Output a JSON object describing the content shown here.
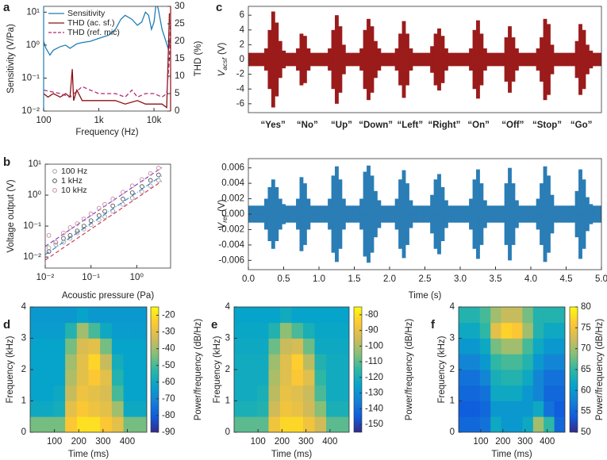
{
  "chart_data": [
    {
      "panel": "a",
      "type": "line",
      "xlabel": "Frequency (Hz)",
      "ylabel": "Sensitivity (V/Pa)",
      "y2label": "THD (%)",
      "xscale": "log",
      "yscale": "log",
      "xlim": [
        100,
        20000
      ],
      "ylim": [
        0.01,
        15
      ],
      "y2lim": [
        0,
        30
      ],
      "xticks": [
        100,
        {
          "value": 1000,
          "label": "1k"
        },
        {
          "value": 10000,
          "label": "10k"
        }
      ],
      "yticks": [
        {
          "value": 0.01,
          "label": "10⁻²"
        },
        {
          "value": 0.1,
          "label": "10⁻¹"
        },
        {
          "value": 1,
          "label": "10⁰"
        },
        {
          "value": 10,
          "label": "10¹"
        }
      ],
      "y2ticks": [
        0,
        5,
        10,
        15,
        20,
        25,
        30
      ],
      "legend": "upper left",
      "series": [
        {
          "name": "Sensitivity",
          "color": "#1f7db5",
          "x": [
            100,
            110,
            130,
            150,
            200,
            250,
            300,
            400,
            500,
            700,
            1000,
            1500,
            2000,
            2500,
            3000,
            4000,
            5000,
            6000,
            7000,
            8000,
            9000,
            10000,
            11000,
            12000,
            14000,
            16000,
            18000,
            20000
          ],
          "values": [
            1.3,
            0.8,
            0.5,
            0.7,
            0.9,
            1.0,
            0.8,
            1.1,
            1.2,
            1.3,
            1.6,
            2.0,
            3.0,
            6,
            8,
            6,
            4,
            5,
            10,
            8,
            3,
            5,
            20,
            12,
            3,
            1.5,
            0.8,
            1.5
          ]
        },
        {
          "name": "THD (ac. sf.)",
          "color": "#8b1010",
          "axis": "y2",
          "x": [
            100,
            120,
            150,
            200,
            250,
            300,
            330,
            350,
            400,
            500,
            700,
            1000,
            2000,
            3000,
            5000,
            7000,
            10000,
            14000,
            17000,
            18000,
            19000
          ],
          "values": [
            5,
            4,
            5,
            4,
            5,
            4,
            12,
            3,
            6,
            3,
            3,
            3,
            3,
            2,
            3,
            2,
            2,
            2,
            1,
            14,
            28
          ]
        },
        {
          "name": "THD (ref. mic)",
          "color": "#b4296e",
          "axis": "y2",
          "dash": true,
          "x": [
            100,
            200,
            300,
            500,
            700,
            1000,
            2000,
            3000,
            4000,
            5000,
            7000,
            10000,
            14000,
            17000,
            19000,
            20000
          ],
          "values": [
            6,
            5,
            4,
            7,
            6,
            5,
            5,
            4,
            6,
            4,
            5,
            5,
            4,
            5,
            15,
            27
          ]
        }
      ]
    },
    {
      "panel": "b",
      "type": "scatter",
      "xlabel": "Acoustic pressure (Pa)",
      "ylabel": "Voltage output (V)",
      "xscale": "log",
      "yscale": "log",
      "xlim": [
        0.01,
        5.5
      ],
      "ylim": [
        0.0044,
        10
      ],
      "xticks": [
        {
          "value": 0.01,
          "label": "10⁻²"
        },
        {
          "value": 0.1,
          "label": "10⁻¹"
        },
        {
          "value": 1,
          "label": "10⁰"
        }
      ],
      "yticks": [
        {
          "value": 0.01,
          "label": "10⁻²"
        },
        {
          "value": 0.1,
          "label": "10⁻¹"
        },
        {
          "value": 1,
          "label": "10⁰"
        },
        {
          "value": 10,
          "label": "10¹"
        }
      ],
      "legend": "upper left",
      "x": [
        0.012,
        0.017,
        0.025,
        0.035,
        0.05,
        0.07,
        0.1,
        0.15,
        0.2,
        0.3,
        0.5,
        0.8,
        1.3,
        2,
        3
      ],
      "line_x": [
        0.01,
        3.5
      ],
      "series": [
        {
          "name": "100 Hz",
          "color": "#a0a0a0",
          "values": [
            0.02,
            0.025,
            0.03,
            0.04,
            0.06,
            0.08,
            0.11,
            0.16,
            0.2,
            0.3,
            0.5,
            0.8,
            1.3,
            2,
            3
          ],
          "line_color": "#d04060",
          "line_values": [
            0.008,
            2.8
          ]
        },
        {
          "name": "1 kHz",
          "color": "#555555",
          "values": [
            0.015,
            0.03,
            0.04,
            0.05,
            0.07,
            0.1,
            0.15,
            0.22,
            0.3,
            0.45,
            0.75,
            1.2,
            1.9,
            3,
            4.5
          ],
          "line_color": "#3a8fd0",
          "line_values": [
            0.012,
            4.2
          ]
        },
        {
          "name": "10 kHz",
          "color": "#c88a9c",
          "values": [
            0.05,
            0.03,
            0.06,
            0.09,
            0.12,
            0.17,
            0.25,
            0.38,
            0.5,
            0.75,
            1.25,
            2,
            3.2,
            5,
            7.5
          ],
          "line_color": "#8a40c0",
          "line_values": [
            0.022,
            7.7
          ]
        }
      ]
    },
    {
      "panel": "c",
      "type": "area",
      "ylabel": {
        "symbol": "V",
        "sub": "acsf",
        "unit": "(V)"
      },
      "xlim": [
        0,
        5
      ],
      "ylim": [
        -7.2,
        7.2
      ],
      "yticks": [
        -6,
        -4,
        -2,
        0,
        2,
        4,
        6
      ],
      "words": [
        "“Yes”",
        "“No”",
        "“Up”",
        "“Down”",
        "“Left”",
        "“Right”",
        "“On”",
        "“Off”",
        "“Stop”",
        "“Go”"
      ],
      "x": [
        0,
        0.05,
        0.1,
        0.15,
        0.2,
        0.25,
        0.3,
        0.35,
        0.4,
        0.45,
        0.5,
        0.55,
        0.6,
        0.65,
        0.7,
        0.75,
        0.8,
        0.85,
        0.9,
        0.95,
        1,
        1.05,
        1.1,
        1.15,
        1.2,
        1.25,
        1.3,
        1.35,
        1.4,
        1.45,
        1.5,
        1.55,
        1.6,
        1.65,
        1.7,
        1.75,
        1.8,
        1.85,
        1.9,
        1.95,
        2,
        2.05,
        2.1,
        2.15,
        2.2,
        2.25,
        2.3,
        2.35,
        2.4,
        2.45,
        2.5,
        2.55,
        2.6,
        2.65,
        2.7,
        2.75,
        2.8,
        2.85,
        2.9,
        2.95,
        3,
        3.05,
        3.1,
        3.15,
        3.2,
        3.25,
        3.3,
        3.35,
        3.4,
        3.45,
        3.5,
        3.55,
        3.6,
        3.65,
        3.7,
        3.75,
        3.8,
        3.85,
        3.9,
        3.95,
        4,
        4.05,
        4.1,
        4.15,
        4.2,
        4.25,
        4.3,
        4.35,
        4.4,
        4.45,
        4.5,
        4.55,
        4.6,
        4.65,
        4.7,
        4.75,
        4.8,
        4.85,
        4.9,
        4.95,
        5
      ],
      "color": "#9b1b1b",
      "values": [
        0.9,
        0.9,
        0.9,
        0.9,
        0.9,
        1.5,
        4,
        6.5,
        5,
        2.5,
        1.2,
        0.9,
        0.9,
        0.9,
        1.5,
        3.5,
        3.2,
        1.5,
        0.9,
        0.9,
        0.9,
        0.9,
        0.9,
        1.5,
        4,
        6,
        4.5,
        2,
        0.9,
        0.9,
        0.9,
        0.9,
        1.5,
        4,
        5.5,
        4.5,
        2.5,
        1.5,
        0.9,
        0.9,
        0.9,
        0.9,
        1.5,
        3.5,
        5.2,
        3.5,
        1.5,
        0.9,
        0.9,
        0.9,
        0.9,
        0.9,
        1.8,
        3.5,
        4.2,
        3.2,
        1.5,
        0.9,
        0.9,
        0.9,
        0.9,
        0.9,
        0.9,
        1.5,
        4,
        5.3,
        3.5,
        1.5,
        0.9,
        0.9,
        0.9,
        0.9,
        0.9,
        3,
        4.5,
        3,
        1.5,
        0.9,
        0.9,
        0.9,
        0.9,
        0.9,
        1.5,
        3,
        5.5,
        4.8,
        2,
        0.9,
        0.9,
        0.9,
        0.9,
        0.9,
        0.9,
        2.5,
        4.8,
        4,
        2,
        1.2,
        0.9,
        0.9,
        0.9
      ]
    },
    {
      "type": "area",
      "xlabel": "Time (s)",
      "ylabel": {
        "symbol": "V",
        "sub": "ref",
        "unit": "(V)"
      },
      "xlim": [
        0,
        5
      ],
      "ylim": [
        -0.0072,
        0.0072
      ],
      "xticks": [
        {
          "value": 0,
          "label": "0.0"
        },
        0.5,
        {
          "value": 1,
          "label": "1.0"
        },
        1.5,
        {
          "value": 2,
          "label": "2.0"
        },
        2.5,
        {
          "value": 3,
          "label": "3.0"
        },
        3.5,
        {
          "value": 4,
          "label": "4.0"
        },
        4.5,
        {
          "value": 5,
          "label": "5.0"
        }
      ],
      "yticks": [
        -0.006,
        -0.004,
        -0.002,
        {
          "value": 0,
          "label": "0.000"
        },
        0.002,
        0.004,
        0.006
      ],
      "x": [
        0,
        0.05,
        0.1,
        0.15,
        0.2,
        0.25,
        0.3,
        0.35,
        0.4,
        0.45,
        0.5,
        0.55,
        0.6,
        0.65,
        0.7,
        0.75,
        0.8,
        0.85,
        0.9,
        0.95,
        1,
        1.05,
        1.1,
        1.15,
        1.2,
        1.25,
        1.3,
        1.35,
        1.4,
        1.45,
        1.5,
        1.55,
        1.6,
        1.65,
        1.7,
        1.75,
        1.8,
        1.85,
        1.9,
        1.95,
        2,
        2.05,
        2.1,
        2.15,
        2.2,
        2.25,
        2.3,
        2.35,
        2.4,
        2.45,
        2.5,
        2.55,
        2.6,
        2.65,
        2.7,
        2.75,
        2.8,
        2.85,
        2.9,
        2.95,
        3,
        3.05,
        3.1,
        3.15,
        3.2,
        3.25,
        3.3,
        3.35,
        3.4,
        3.45,
        3.5,
        3.55,
        3.6,
        3.65,
        3.7,
        3.75,
        3.8,
        3.85,
        3.9,
        3.95,
        4,
        4.05,
        4.1,
        4.15,
        4.2,
        4.25,
        4.3,
        4.35,
        4.4,
        4.45,
        4.5,
        4.55,
        4.6,
        4.65,
        4.7,
        4.75,
        4.8,
        4.85,
        4.9,
        4.95,
        5
      ],
      "color": "#2a7db5",
      "values": [
        0.0011,
        0.0011,
        0.0011,
        0.0011,
        0.0011,
        0.002,
        0.0035,
        0.0045,
        0.0035,
        0.002,
        0.0013,
        0.0011,
        0.0011,
        0.0011,
        0.002,
        0.0048,
        0.004,
        0.002,
        0.0011,
        0.0011,
        0.0011,
        0.0011,
        0.0011,
        0.002,
        0.005,
        0.0062,
        0.0045,
        0.002,
        0.0011,
        0.0011,
        0.0011,
        0.0011,
        0.002,
        0.0055,
        0.0063,
        0.005,
        0.003,
        0.0018,
        0.0011,
        0.0011,
        0.0011,
        0.0011,
        0.002,
        0.0045,
        0.0057,
        0.004,
        0.0018,
        0.0011,
        0.0011,
        0.0011,
        0.0011,
        0.0011,
        0.0025,
        0.0045,
        0.0052,
        0.0035,
        0.0018,
        0.0011,
        0.0011,
        0.0011,
        0.0011,
        0.0011,
        0.0011,
        0.002,
        0.0045,
        0.0058,
        0.004,
        0.0018,
        0.0011,
        0.0011,
        0.0011,
        0.0011,
        0.0011,
        0.004,
        0.006,
        0.004,
        0.0018,
        0.0011,
        0.0011,
        0.0011,
        0.0011,
        0.0011,
        0.002,
        0.004,
        0.0062,
        0.005,
        0.0025,
        0.0011,
        0.0011,
        0.0011,
        0.0011,
        0.0011,
        0.0011,
        0.003,
        0.0058,
        0.0045,
        0.0022,
        0.0013,
        0.0011,
        0.0011,
        0.0011
      ]
    },
    {
      "panel": "d",
      "type": "heatmap",
      "xlabel": "Time (ms)",
      "ylabel": "Frequency (kHz)",
      "zlabel": "Power/frequency (dB/Hz)",
      "colormap": "parula",
      "xlim": [
        0,
        480
      ],
      "ylim": [
        0,
        4
      ],
      "xticks": [
        100,
        200,
        300,
        400
      ],
      "yticks": [
        0,
        1,
        2,
        3,
        4
      ],
      "zlim": [
        -90,
        -15
      ],
      "zticks": [
        -20,
        -30,
        -40,
        -50,
        -60,
        -70,
        -80,
        -90
      ],
      "z": [
        [
          -45,
          -45,
          -45,
          -25,
          -20,
          -20,
          -25,
          -30,
          -45,
          -45
        ],
        [
          -60,
          -60,
          -58,
          -30,
          -25,
          -28,
          -30,
          -40,
          -60,
          -60
        ],
        [
          -62,
          -62,
          -60,
          -35,
          -28,
          -30,
          -32,
          -50,
          -62,
          -62
        ],
        [
          -62,
          -62,
          -62,
          -38,
          -30,
          -25,
          -30,
          -55,
          -62,
          -62
        ],
        [
          -62,
          -62,
          -62,
          -40,
          -30,
          -22,
          -35,
          -58,
          -62,
          -62
        ],
        [
          -62,
          -62,
          -62,
          -45,
          -32,
          -30,
          -45,
          -62,
          -62,
          -62
        ],
        [
          -64,
          -64,
          -64,
          -55,
          -40,
          -50,
          -60,
          -64,
          -64,
          -64
        ],
        [
          -65,
          -65,
          -65,
          -65,
          -62,
          -65,
          -65,
          -65,
          -65,
          -65
        ]
      ]
    },
    {
      "panel": "e",
      "type": "heatmap",
      "xlabel": "Time (ms)",
      "ylabel": "Frequency (kHz)",
      "zlabel": "Power/frequency (dB/Hz)",
      "colormap": "parula",
      "xlim": [
        0,
        480
      ],
      "ylim": [
        0,
        4
      ],
      "xticks": [
        100,
        200,
        300,
        400
      ],
      "yticks": [
        0,
        1,
        2,
        3,
        4
      ],
      "zlim": [
        -155,
        -75
      ],
      "zticks": [
        -80,
        -90,
        -100,
        -110,
        -120,
        -130,
        -140,
        -150
      ],
      "z": [
        [
          -110,
          -110,
          -110,
          -88,
          -82,
          -82,
          -88,
          -95,
          -110,
          -110
        ],
        [
          -120,
          -120,
          -118,
          -95,
          -88,
          -90,
          -95,
          -105,
          -120,
          -120
        ],
        [
          -122,
          -122,
          -120,
          -98,
          -90,
          -92,
          -96,
          -112,
          -122,
          -122
        ],
        [
          -122,
          -122,
          -122,
          -100,
          -92,
          -86,
          -92,
          -115,
          -122,
          -122
        ],
        [
          -122,
          -122,
          -122,
          -102,
          -92,
          -84,
          -98,
          -118,
          -122,
          -122
        ],
        [
          -123,
          -123,
          -123,
          -108,
          -96,
          -94,
          -108,
          -123,
          -123,
          -123
        ],
        [
          -124,
          -124,
          -124,
          -118,
          -104,
          -112,
          -120,
          -124,
          -124,
          -124
        ],
        [
          -125,
          -125,
          -125,
          -125,
          -122,
          -125,
          -125,
          -125,
          -125,
          -125
        ]
      ]
    },
    {
      "panel": "f",
      "type": "heatmap",
      "xlabel": "Time (ms)",
      "ylabel": "Frequency (kHz)",
      "zlabel": "Power/frequency (dB/Hz)",
      "colormap": "parula",
      "xlim": [
        0,
        480
      ],
      "ylim": [
        0,
        4
      ],
      "xticks": [
        100,
        200,
        300,
        400
      ],
      "yticks": [
        0,
        1,
        2,
        3,
        4
      ],
      "zlim": [
        50,
        80
      ],
      "zticks": [
        50,
        55,
        60,
        65,
        70,
        75,
        80
      ],
      "z": [
        [
          55,
          55,
          56,
          62,
          60,
          60,
          62,
          70,
          65,
          55
        ],
        [
          54,
          54,
          55,
          60,
          60,
          60,
          60,
          62,
          56,
          54
        ],
        [
          55,
          55,
          56,
          62,
          62,
          62,
          60,
          58,
          55,
          55
        ],
        [
          56,
          56,
          58,
          63,
          64,
          64,
          62,
          58,
          56,
          56
        ],
        [
          58,
          58,
          60,
          65,
          66,
          66,
          64,
          60,
          58,
          58
        ],
        [
          60,
          60,
          62,
          68,
          70,
          70,
          66,
          62,
          60,
          60
        ],
        [
          62,
          62,
          65,
          74,
          77,
          76,
          70,
          64,
          62,
          62
        ],
        [
          64,
          64,
          66,
          70,
          72,
          72,
          68,
          64,
          64,
          64
        ]
      ]
    }
  ]
}
